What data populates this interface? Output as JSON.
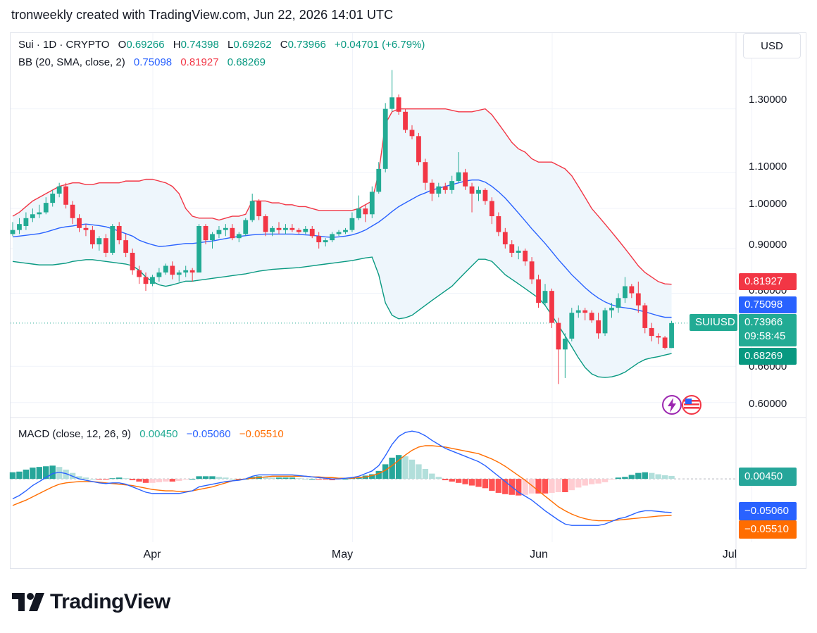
{
  "header": {
    "text": "tronweekly created with TradingView.com, Jun 22, 2026 14:01 UTC"
  },
  "currency_button": "USD",
  "legend": {
    "symbol": "Sui · 1D · CRYPTO",
    "o_label": "O",
    "o": "0.69266",
    "h_label": "H",
    "h": "0.74398",
    "l_label": "L",
    "l": "0.69262",
    "c_label": "C",
    "c": "0.73966",
    "change": "+0.04701 (+6.79%)",
    "bb_label": "BB (20, SMA, close, 2)",
    "bb_basis": "0.75098",
    "bb_upper": "0.81927",
    "bb_lower": "0.68269"
  },
  "macd_legend": {
    "label": "MACD (close, 12, 26, 9)",
    "hist": "0.00450",
    "macd": "−0.05060",
    "signal": "−0.05510"
  },
  "price_axis": [
    "1.30000",
    "1.10000",
    "1.00000",
    "0.90000",
    "0.80000",
    "0.66000",
    "0.60000"
  ],
  "x_axis": [
    "Apr",
    "May",
    "Jun",
    "Jul"
  ],
  "badges": {
    "upper": "0.81927",
    "basis": "0.75098",
    "symbol": "SUIUSD",
    "price": "0.73966",
    "countdown": "09:58:45",
    "lower": "0.68269",
    "macd_hist": "0.00450",
    "macd": "−0.05060",
    "signal": "−0.05510"
  },
  "brand": "TradingView",
  "colors": {
    "up": "#22ab94",
    "down": "#f23645",
    "basis": "#2962ff",
    "upper": "#f23645",
    "lower": "#089981",
    "band_fill": "#eef6fc",
    "macd": "#2962ff",
    "signal": "#ff6d00"
  },
  "chart_data": {
    "type": "candlestick",
    "symbol": "SUIUSD",
    "ylim": [
      0.58,
      1.46
    ],
    "y_scale": "log",
    "candles": [
      [
        0.935,
        0.965,
        0.93,
        0.945
      ],
      [
        0.945,
        0.975,
        0.935,
        0.96
      ],
      [
        0.955,
        0.99,
        0.945,
        0.975
      ],
      [
        0.975,
        1.0,
        0.965,
        0.985
      ],
      [
        0.985,
        1.01,
        0.975,
        0.99
      ],
      [
        0.99,
        1.03,
        0.985,
        1.015
      ],
      [
        1.015,
        1.05,
        1.005,
        1.04
      ],
      [
        1.04,
        1.07,
        1.03,
        1.06
      ],
      [
        1.06,
        1.07,
        1.0,
        1.01
      ],
      [
        1.01,
        1.02,
        0.96,
        0.975
      ],
      [
        0.975,
        0.985,
        0.94,
        0.95
      ],
      [
        0.95,
        0.96,
        0.93,
        0.945
      ],
      [
        0.945,
        0.955,
        0.9,
        0.91
      ],
      [
        0.91,
        0.93,
        0.895,
        0.925
      ],
      [
        0.925,
        0.935,
        0.88,
        0.89
      ],
      [
        0.89,
        0.96,
        0.885,
        0.955
      ],
      [
        0.955,
        0.965,
        0.91,
        0.92
      ],
      [
        0.92,
        0.935,
        0.88,
        0.89
      ],
      [
        0.89,
        0.9,
        0.84,
        0.85
      ],
      [
        0.85,
        0.86,
        0.82,
        0.835
      ],
      [
        0.835,
        0.845,
        0.805,
        0.82
      ],
      [
        0.82,
        0.84,
        0.815,
        0.835
      ],
      [
        0.835,
        0.855,
        0.825,
        0.845
      ],
      [
        0.845,
        0.865,
        0.84,
        0.86
      ],
      [
        0.86,
        0.87,
        0.83,
        0.84
      ],
      [
        0.84,
        0.85,
        0.825,
        0.845
      ],
      [
        0.845,
        0.86,
        0.835,
        0.85
      ],
      [
        0.85,
        0.855,
        0.825,
        0.845
      ],
      [
        0.845,
        0.96,
        0.845,
        0.955
      ],
      [
        0.955,
        0.96,
        0.91,
        0.92
      ],
      [
        0.92,
        0.94,
        0.9,
        0.935
      ],
      [
        0.935,
        0.955,
        0.925,
        0.945
      ],
      [
        0.945,
        0.96,
        0.93,
        0.95
      ],
      [
        0.95,
        0.96,
        0.92,
        0.925
      ],
      [
        0.925,
        0.94,
        0.915,
        0.935
      ],
      [
        0.935,
        0.975,
        0.93,
        0.97
      ],
      [
        0.97,
        1.04,
        0.965,
        1.02
      ],
      [
        1.02,
        1.025,
        0.97,
        0.98
      ],
      [
        0.98,
        0.985,
        0.93,
        0.94
      ],
      [
        0.94,
        0.955,
        0.93,
        0.95
      ],
      [
        0.95,
        0.965,
        0.935,
        0.945
      ],
      [
        0.945,
        0.96,
        0.935,
        0.95
      ],
      [
        0.95,
        0.96,
        0.94,
        0.945
      ],
      [
        0.945,
        0.95,
        0.935,
        0.94
      ],
      [
        0.94,
        0.955,
        0.935,
        0.948
      ],
      [
        0.948,
        0.955,
        0.925,
        0.93
      ],
      [
        0.93,
        0.94,
        0.9,
        0.915
      ],
      [
        0.915,
        0.925,
        0.905,
        0.92
      ],
      [
        0.92,
        0.94,
        0.915,
        0.935
      ],
      [
        0.935,
        0.945,
        0.93,
        0.94
      ],
      [
        0.94,
        0.95,
        0.935,
        0.945
      ],
      [
        0.945,
        0.99,
        0.94,
        0.975
      ],
      [
        0.975,
        1.035,
        0.97,
        1.0
      ],
      [
        1.0,
        1.01,
        0.965,
        0.985
      ],
      [
        0.985,
        1.06,
        0.975,
        1.045
      ],
      [
        1.045,
        1.13,
        1.04,
        1.11
      ],
      [
        1.11,
        1.32,
        1.1,
        1.3
      ],
      [
        1.3,
        1.44,
        1.29,
        1.34
      ],
      [
        1.34,
        1.35,
        1.28,
        1.29
      ],
      [
        1.29,
        1.3,
        1.22,
        1.23
      ],
      [
        1.23,
        1.245,
        1.2,
        1.21
      ],
      [
        1.21,
        1.22,
        1.12,
        1.13
      ],
      [
        1.13,
        1.14,
        1.05,
        1.07
      ],
      [
        1.07,
        1.08,
        1.02,
        1.04
      ],
      [
        1.04,
        1.07,
        1.03,
        1.06
      ],
      [
        1.06,
        1.07,
        1.04,
        1.05
      ],
      [
        1.05,
        1.09,
        1.04,
        1.075
      ],
      [
        1.075,
        1.16,
        1.07,
        1.1
      ],
      [
        1.1,
        1.11,
        1.05,
        1.06
      ],
      [
        1.06,
        1.07,
        0.99,
        1.04
      ],
      [
        1.04,
        1.06,
        1.02,
        1.05
      ],
      [
        1.05,
        1.055,
        1.01,
        1.02
      ],
      [
        1.02,
        1.03,
        0.96,
        0.98
      ],
      [
        0.98,
        0.99,
        0.93,
        0.94
      ],
      [
        0.94,
        0.95,
        0.9,
        0.91
      ],
      [
        0.91,
        0.92,
        0.88,
        0.89
      ],
      [
        0.89,
        0.905,
        0.875,
        0.895
      ],
      [
        0.895,
        0.9,
        0.86,
        0.87
      ],
      [
        0.87,
        0.88,
        0.82,
        0.83
      ],
      [
        0.83,
        0.84,
        0.77,
        0.78
      ],
      [
        0.78,
        0.82,
        0.775,
        0.805
      ],
      [
        0.805,
        0.81,
        0.73,
        0.74
      ],
      [
        0.74,
        0.75,
        0.63,
        0.69
      ],
      [
        0.69,
        0.72,
        0.64,
        0.71
      ],
      [
        0.71,
        0.77,
        0.705,
        0.76
      ],
      [
        0.76,
        0.775,
        0.75,
        0.765
      ],
      [
        0.765,
        0.77,
        0.745,
        0.76
      ],
      [
        0.76,
        0.765,
        0.74,
        0.745
      ],
      [
        0.745,
        0.76,
        0.71,
        0.72
      ],
      [
        0.72,
        0.77,
        0.715,
        0.765
      ],
      [
        0.765,
        0.78,
        0.75,
        0.77
      ],
      [
        0.77,
        0.8,
        0.76,
        0.79
      ],
      [
        0.79,
        0.835,
        0.78,
        0.815
      ],
      [
        0.815,
        0.82,
        0.79,
        0.8
      ],
      [
        0.8,
        0.825,
        0.76,
        0.775
      ],
      [
        0.775,
        0.78,
        0.72,
        0.73
      ],
      [
        0.73,
        0.74,
        0.705,
        0.715
      ],
      [
        0.715,
        0.72,
        0.7,
        0.712
      ],
      [
        0.712,
        0.715,
        0.69,
        0.693
      ],
      [
        0.69266,
        0.74398,
        0.69262,
        0.73966
      ]
    ],
    "bb_upper": [
      0.98,
      0.99,
      1.005,
      1.02,
      1.03,
      1.04,
      1.05,
      1.06,
      1.065,
      1.07,
      1.07,
      1.065,
      1.065,
      1.07,
      1.07,
      1.07,
      1.07,
      1.075,
      1.075,
      1.075,
      1.08,
      1.08,
      1.075,
      1.07,
      1.06,
      1.04,
      1.0,
      0.98,
      0.975,
      0.975,
      0.975,
      0.97,
      0.975,
      0.98,
      0.98,
      0.985,
      1.02,
      1.02,
      1.02,
      1.015,
      1.015,
      1.01,
      1.01,
      1.005,
      1.005,
      1.0,
      0.995,
      0.995,
      0.995,
      0.995,
      0.995,
      0.995,
      1.0,
      1.01,
      1.02,
      1.1,
      1.25,
      1.29,
      1.3,
      1.3,
      1.3,
      1.3,
      1.3,
      1.3,
      1.3,
      1.3,
      1.295,
      1.29,
      1.29,
      1.29,
      1.295,
      1.3,
      1.28,
      1.25,
      1.22,
      1.19,
      1.17,
      1.16,
      1.14,
      1.13,
      1.13,
      1.13,
      1.12,
      1.11,
      1.09,
      1.06,
      1.03,
      1.0,
      0.98,
      0.96,
      0.94,
      0.92,
      0.9,
      0.88,
      0.86,
      0.845,
      0.835,
      0.825,
      0.82,
      0.81927
    ],
    "bb_basis": [
      0.928,
      0.93,
      0.932,
      0.934,
      0.936,
      0.94,
      0.945,
      0.95,
      0.953,
      0.955,
      0.958,
      0.96,
      0.958,
      0.956,
      0.953,
      0.948,
      0.942,
      0.936,
      0.93,
      0.92,
      0.914,
      0.909,
      0.905,
      0.906,
      0.908,
      0.91,
      0.912,
      0.912,
      0.914,
      0.916,
      0.918,
      0.921,
      0.924,
      0.927,
      0.929,
      0.931,
      0.933,
      0.934,
      0.935,
      0.935,
      0.935,
      0.935,
      0.935,
      0.934,
      0.933,
      0.932,
      0.93,
      0.928,
      0.927,
      0.928,
      0.93,
      0.933,
      0.938,
      0.945,
      0.955,
      0.965,
      0.978,
      0.992,
      1.005,
      1.015,
      1.025,
      1.035,
      1.042,
      1.05,
      1.055,
      1.06,
      1.065,
      1.07,
      1.075,
      1.078,
      1.078,
      1.072,
      1.06,
      1.045,
      1.028,
      1.008,
      0.988,
      0.968,
      0.948,
      0.93,
      0.912,
      0.893,
      0.874,
      0.857,
      0.84,
      0.826,
      0.812,
      0.8,
      0.79,
      0.782,
      0.776,
      0.772,
      0.77,
      0.768,
      0.765,
      0.762,
      0.758,
      0.754,
      0.751,
      0.75098
    ],
    "bb_lower": [
      0.87,
      0.868,
      0.866,
      0.864,
      0.862,
      0.862,
      0.862,
      0.864,
      0.866,
      0.87,
      0.872,
      0.874,
      0.874,
      0.872,
      0.87,
      0.868,
      0.866,
      0.864,
      0.86,
      0.85,
      0.835,
      0.825,
      0.818,
      0.815,
      0.818,
      0.822,
      0.826,
      0.826,
      0.828,
      0.83,
      0.832,
      0.834,
      0.836,
      0.838,
      0.84,
      0.842,
      0.845,
      0.848,
      0.85,
      0.852,
      0.853,
      0.854,
      0.855,
      0.856,
      0.858,
      0.86,
      0.862,
      0.864,
      0.866,
      0.868,
      0.87,
      0.872,
      0.875,
      0.878,
      0.88,
      0.84,
      0.78,
      0.755,
      0.748,
      0.75,
      0.755,
      0.765,
      0.775,
      0.785,
      0.795,
      0.805,
      0.815,
      0.83,
      0.845,
      0.86,
      0.875,
      0.875,
      0.87,
      0.855,
      0.84,
      0.83,
      0.82,
      0.81,
      0.8,
      0.79,
      0.775,
      0.755,
      0.735,
      0.715,
      0.695,
      0.675,
      0.658,
      0.647,
      0.642,
      0.641,
      0.642,
      0.645,
      0.65,
      0.658,
      0.666,
      0.672,
      0.675,
      0.677,
      0.68,
      0.68269
    ],
    "macd_line": [
      -0.03,
      -0.025,
      -0.018,
      -0.01,
      -0.004,
      0.002,
      0.008,
      0.01,
      0.008,
      0.004,
      0.0,
      -0.002,
      -0.004,
      -0.006,
      -0.007,
      -0.006,
      -0.006,
      -0.008,
      -0.012,
      -0.016,
      -0.02,
      -0.022,
      -0.022,
      -0.022,
      -0.022,
      -0.022,
      -0.02,
      -0.018,
      -0.012,
      -0.01,
      -0.008,
      -0.006,
      -0.004,
      -0.003,
      -0.002,
      0.0,
      0.004,
      0.006,
      0.006,
      0.006,
      0.006,
      0.006,
      0.006,
      0.005,
      0.004,
      0.003,
      0.002,
      0.001,
      0.0,
      0.0,
      0.001,
      0.002,
      0.004,
      0.008,
      0.012,
      0.02,
      0.035,
      0.052,
      0.064,
      0.07,
      0.072,
      0.07,
      0.065,
      0.058,
      0.052,
      0.046,
      0.042,
      0.038,
      0.034,
      0.03,
      0.026,
      0.02,
      0.012,
      0.004,
      -0.004,
      -0.012,
      -0.02,
      -0.026,
      -0.032,
      -0.04,
      -0.048,
      -0.055,
      -0.062,
      -0.068,
      -0.07,
      -0.07,
      -0.07,
      -0.07,
      -0.07,
      -0.068,
      -0.064,
      -0.06,
      -0.058,
      -0.054,
      -0.05,
      -0.048,
      -0.048,
      -0.049,
      -0.05,
      -0.0506
    ],
    "signal_line": [
      -0.04,
      -0.036,
      -0.032,
      -0.027,
      -0.022,
      -0.017,
      -0.012,
      -0.008,
      -0.006,
      -0.005,
      -0.004,
      -0.004,
      -0.004,
      -0.005,
      -0.006,
      -0.007,
      -0.008,
      -0.009,
      -0.01,
      -0.012,
      -0.014,
      -0.016,
      -0.017,
      -0.018,
      -0.018,
      -0.019,
      -0.019,
      -0.018,
      -0.016,
      -0.014,
      -0.012,
      -0.009,
      -0.006,
      -0.003,
      -0.001,
      0.0,
      0.001,
      0.002,
      0.003,
      0.004,
      0.004,
      0.004,
      0.004,
      0.004,
      0.004,
      0.003,
      0.003,
      0.002,
      0.002,
      0.001,
      0.001,
      0.001,
      0.002,
      0.003,
      0.005,
      0.008,
      0.013,
      0.02,
      0.028,
      0.036,
      0.043,
      0.048,
      0.05,
      0.05,
      0.049,
      0.048,
      0.046,
      0.044,
      0.042,
      0.04,
      0.038,
      0.034,
      0.03,
      0.025,
      0.019,
      0.012,
      0.005,
      -0.002,
      -0.01,
      -0.018,
      -0.026,
      -0.034,
      -0.042,
      -0.048,
      -0.053,
      -0.057,
      -0.06,
      -0.062,
      -0.063,
      -0.063,
      -0.063,
      -0.062,
      -0.061,
      -0.06,
      -0.059,
      -0.058,
      -0.057,
      -0.056,
      -0.0555,
      -0.0551
    ],
    "macd_ylim": [
      -0.09,
      0.085
    ],
    "x_ticks": [
      {
        "label": "Apr",
        "index": 20
      },
      {
        "label": "May",
        "index": 50
      },
      {
        "label": "Jun",
        "index": 80
      },
      {
        "label": "Jul",
        "index": 110
      }
    ]
  }
}
